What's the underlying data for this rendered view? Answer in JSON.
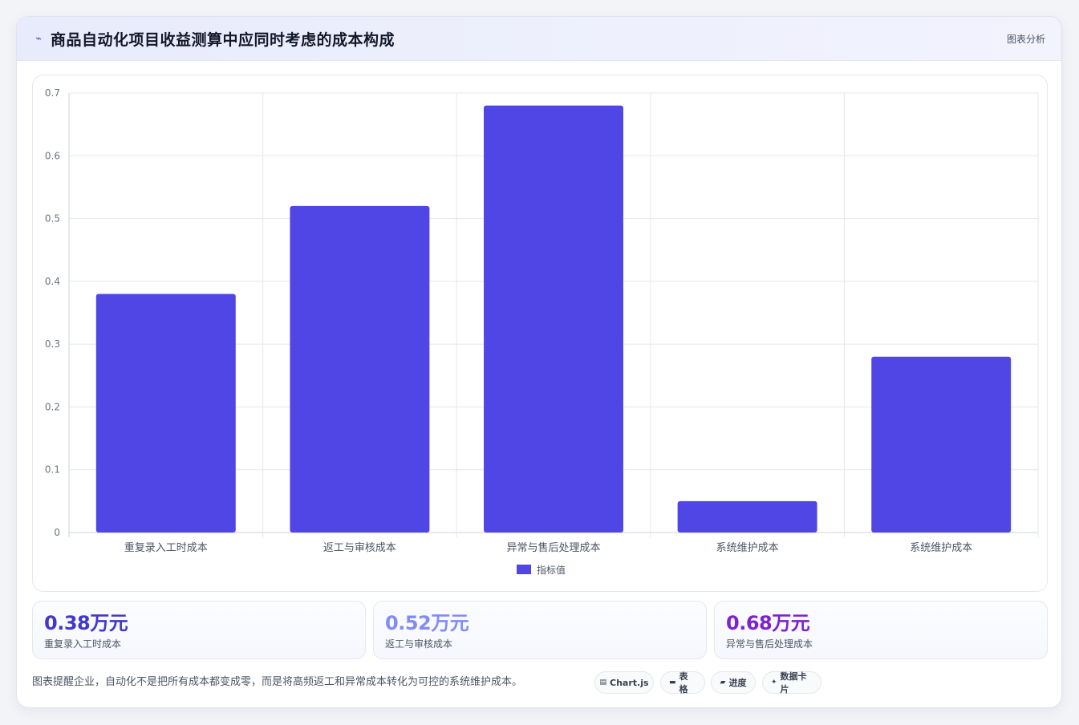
{
  "header": {
    "title": "商品自动化项目收益测算中应同时考虑的成本构成",
    "title_icon": "line-chart-icon",
    "tag": "图表分析"
  },
  "chart_data": {
    "type": "bar",
    "categories": [
      "重复录入工时成本",
      "返工与审核成本",
      "异常与售后处理成本",
      "系统维护成本",
      "系统维护成本"
    ],
    "series": [
      {
        "name": "指标值",
        "values": [
          0.38,
          0.52,
          0.68,
          0.05,
          0.28
        ],
        "color": "#4f46e5"
      }
    ],
    "ylim": [
      0,
      0.7
    ],
    "yticks": [
      "0",
      "0.1",
      "0.2",
      "0.3",
      "0.4",
      "0.5",
      "0.6",
      "0.7"
    ],
    "grid": true,
    "legend_position": "bottom"
  },
  "stats": [
    {
      "value": "0.38万元",
      "label": "重复录入工时成本",
      "color": "#4338ca"
    },
    {
      "value": "0.52万元",
      "label": "返工与审核成本",
      "color": "#818cf8"
    },
    {
      "value": "0.68万元",
      "label": "异常与售后处理成本",
      "color": "#7e22ce"
    }
  ],
  "footer": {
    "note": "图表提醒企业，自动化不是把所有成本都变成零，而是将高频返工和异常成本转化为可控的系统维护成本。",
    "pills": [
      {
        "icon": "chart-icon",
        "glyph": "▤",
        "label": "Chart.js"
      },
      {
        "icon": "table-icon",
        "glyph": "▬",
        "label": "表格"
      },
      {
        "icon": "progress-icon",
        "glyph": "▰",
        "label": "进度"
      },
      {
        "icon": "sparkle-icon",
        "glyph": "✦",
        "label": "数据卡片"
      }
    ]
  }
}
